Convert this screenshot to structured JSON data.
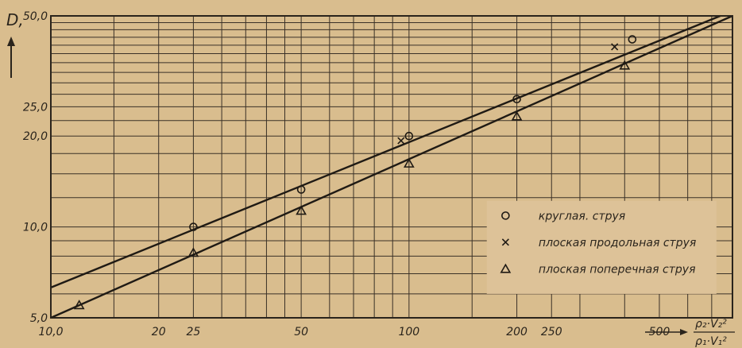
{
  "chart_data": {
    "type": "scatter",
    "x_scale": "log",
    "y_scale": "log",
    "xlim": [
      10,
      800
    ],
    "ylim": [
      5,
      50
    ],
    "grid": true,
    "legend_position": "bottom-right",
    "ylabel": "D,",
    "xlabel": {
      "numerator": "ρ₂·V₂²",
      "denominator": "ρ₁·V₁²"
    },
    "x_tick_labels": [
      "10,0",
      "20",
      "25",
      "50",
      "100",
      "200",
      "250",
      "500"
    ],
    "y_tick_labels": [
      "5,0",
      "10,0",
      "20,0",
      "25,0",
      "50,0"
    ],
    "series": [
      {
        "name": "круглая. струя",
        "marker": "circle",
        "points": [
          [
            25,
            10.0
          ],
          [
            50,
            13.3
          ],
          [
            100,
            20.0
          ],
          [
            200,
            26.5
          ],
          [
            420,
            41.8
          ]
        ]
      },
      {
        "name": "плоская продольная струя",
        "marker": "x",
        "points": [
          [
            95,
            19.3
          ],
          [
            375,
            39.5
          ]
        ]
      },
      {
        "name": "плоская поперечная струя",
        "marker": "triangle",
        "points": [
          [
            12,
            5.5
          ],
          [
            25,
            8.2
          ],
          [
            50,
            11.3
          ],
          [
            100,
            16.2
          ],
          [
            200,
            23.2
          ],
          [
            400,
            34.2
          ]
        ]
      }
    ],
    "fit_lines": [
      {
        "x": [
          10,
          740
        ],
        "y": [
          6.3,
          50.0
        ]
      },
      {
        "x": [
          10,
          800
        ],
        "y": [
          5.0,
          50.0
        ]
      }
    ]
  }
}
